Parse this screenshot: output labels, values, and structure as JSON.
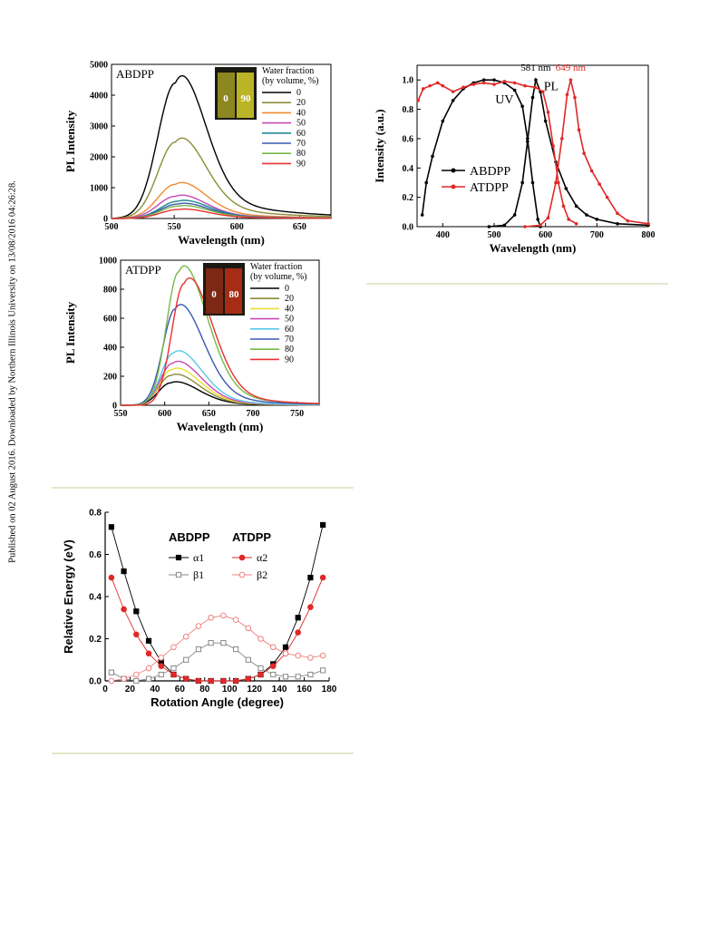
{
  "side_note": "Published on 02 August 2016. Downloaded by Northern Illinois University on 13/08/2016 04:26:28.",
  "chart_data": [
    {
      "id": "abdpp",
      "type": "line",
      "panel_label": "ABDPP",
      "xlabel": "Wavelength (nm)",
      "ylabel": "PL Intensity",
      "xlim": [
        500,
        675
      ],
      "ylim": [
        0,
        5000
      ],
      "xticks": [
        500,
        550,
        600,
        650
      ],
      "yticks": [
        0,
        1000,
        2000,
        3000,
        4000,
        5000
      ],
      "legend_title": [
        "Water fraction",
        "(by volume, %)"
      ],
      "inset_labels": [
        "0",
        "90"
      ],
      "inset_color": "#d8d02a",
      "series": [
        {
          "name": "0",
          "color": "#000000",
          "peak_x": 551,
          "peak_y": 4400
        },
        {
          "name": "20",
          "color": "#8c8c3a",
          "peak_x": 551,
          "peak_y": 2480
        },
        {
          "name": "40",
          "color": "#f08a30",
          "peak_x": 551,
          "peak_y": 1110
        },
        {
          "name": "50",
          "color": "#c848b8",
          "peak_x": 551,
          "peak_y": 720
        },
        {
          "name": "60",
          "color": "#208a90",
          "peak_x": 553,
          "peak_y": 560
        },
        {
          "name": "70",
          "color": "#3a58b0",
          "peak_x": 553,
          "peak_y": 470
        },
        {
          "name": "80",
          "color": "#78b848",
          "peak_x": 553,
          "peak_y": 400
        },
        {
          "name": "90",
          "color": "#e83030",
          "peak_x": 553,
          "peak_y": 290
        }
      ]
    },
    {
      "id": "atdpp",
      "type": "line",
      "panel_label": "ATDPP",
      "xlabel": "Wavelength (nm)",
      "ylabel": "PL Intensity",
      "xlim": [
        550,
        775
      ],
      "ylim": [
        0,
        1000
      ],
      "xticks": [
        550,
        600,
        650,
        700,
        750
      ],
      "yticks": [
        0,
        200,
        400,
        600,
        800,
        1000
      ],
      "legend_title": [
        "Water fraction",
        "(by volume, %)"
      ],
      "inset_labels": [
        "0",
        "80"
      ],
      "inset_color": "#c03018",
      "series": [
        {
          "name": "0",
          "color": "#000000",
          "peak_x": 607,
          "peak_y": 155
        },
        {
          "name": "20",
          "color": "#8c8c3a",
          "peak_x": 607,
          "peak_y": 205
        },
        {
          "name": "40",
          "color": "#e8e030",
          "peak_x": 608,
          "peak_y": 245
        },
        {
          "name": "50",
          "color": "#c848b8",
          "peak_x": 609,
          "peak_y": 290
        },
        {
          "name": "60",
          "color": "#58c8e8",
          "peak_x": 610,
          "peak_y": 360
        },
        {
          "name": "70",
          "color": "#3a58b0",
          "peak_x": 612,
          "peak_y": 665
        },
        {
          "name": "80",
          "color": "#78b848",
          "peak_x": 616,
          "peak_y": 920
        },
        {
          "name": "90",
          "color": "#e83030",
          "peak_x": 622,
          "peak_y": 840
        }
      ]
    },
    {
      "id": "uvpl",
      "type": "line",
      "xlabel": "Wavelength (nm)",
      "ylabel": "Intensity (a.u.)",
      "xlim": [
        350,
        800
      ],
      "ylim": [
        0,
        1.1
      ],
      "xticks": [
        400,
        500,
        600,
        700,
        800
      ],
      "yticks": [
        0.0,
        0.2,
        0.4,
        0.6,
        0.8,
        1.0
      ],
      "annotations": [
        "581 nm",
        "649 nm",
        "UV",
        "PL"
      ],
      "series": [
        {
          "name": "ABDPP",
          "color": "#000000",
          "uv": [
            [
              360,
              0.08
            ],
            [
              368,
              0.3
            ],
            [
              380,
              0.48
            ],
            [
              400,
              0.72
            ],
            [
              420,
              0.86
            ],
            [
              440,
              0.94
            ],
            [
              460,
              0.98
            ],
            [
              480,
              1.0
            ],
            [
              500,
              1.0
            ],
            [
              520,
              0.98
            ],
            [
              540,
              0.93
            ],
            [
              555,
              0.82
            ],
            [
              565,
              0.6
            ],
            [
              575,
              0.3
            ],
            [
              585,
              0.05
            ],
            [
              590,
              0.0
            ]
          ],
          "pl": [
            [
              490,
              0.0
            ],
            [
              520,
              0.01
            ],
            [
              540,
              0.08
            ],
            [
              555,
              0.3
            ],
            [
              565,
              0.58
            ],
            [
              575,
              0.88
            ],
            [
              581,
              1.0
            ],
            [
              590,
              0.92
            ],
            [
              600,
              0.72
            ],
            [
              620,
              0.44
            ],
            [
              640,
              0.26
            ],
            [
              660,
              0.14
            ],
            [
              680,
              0.08
            ],
            [
              700,
              0.05
            ],
            [
              740,
              0.02
            ],
            [
              800,
              0.01
            ]
          ]
        },
        {
          "name": "ATDPP",
          "color": "#e02828",
          "uv": [
            [
              352,
              0.86
            ],
            [
              362,
              0.94
            ],
            [
              375,
              0.96
            ],
            [
              390,
              0.98
            ],
            [
              400,
              0.96
            ],
            [
              420,
              0.92
            ],
            [
              440,
              0.95
            ],
            [
              460,
              0.97
            ],
            [
              480,
              0.98
            ],
            [
              500,
              0.97
            ],
            [
              520,
              0.99
            ],
            [
              540,
              0.98
            ],
            [
              560,
              0.96
            ],
            [
              580,
              0.95
            ],
            [
              595,
              0.92
            ],
            [
              605,
              0.78
            ],
            [
              615,
              0.55
            ],
            [
              625,
              0.3
            ],
            [
              635,
              0.14
            ],
            [
              645,
              0.05
            ],
            [
              660,
              0.02
            ]
          ],
          "pl": [
            [
              560,
              0.0
            ],
            [
              590,
              0.01
            ],
            [
              605,
              0.06
            ],
            [
              620,
              0.3
            ],
            [
              632,
              0.6
            ],
            [
              642,
              0.9
            ],
            [
              649,
              1.0
            ],
            [
              657,
              0.88
            ],
            [
              665,
              0.66
            ],
            [
              675,
              0.5
            ],
            [
              690,
              0.38
            ],
            [
              705,
              0.29
            ],
            [
              720,
              0.2
            ],
            [
              740,
              0.09
            ],
            [
              760,
              0.04
            ],
            [
              800,
              0.02
            ]
          ]
        }
      ]
    },
    {
      "id": "rotation",
      "type": "line",
      "xlabel": "Rotation Angle (degree)",
      "ylabel": "Relative Energy (eV)",
      "xlim": [
        0,
        180
      ],
      "ylim": [
        0,
        0.8
      ],
      "xticks": [
        0,
        20,
        40,
        60,
        80,
        100,
        120,
        140,
        160,
        180
      ],
      "yticks": [
        0.0,
        0.2,
        0.4,
        0.6,
        0.8
      ],
      "legend_groups": [
        "ABDPP",
        "ATDPP"
      ],
      "x": [
        5,
        15,
        25,
        35,
        45,
        55,
        65,
        75,
        85,
        95,
        105,
        115,
        125,
        135,
        145,
        155,
        165,
        175
      ],
      "series": [
        {
          "name": "α1",
          "group": "ABDPP",
          "color": "#000000",
          "marker": "filled-square",
          "values": [
            0.73,
            0.52,
            0.33,
            0.19,
            0.09,
            0.03,
            0.01,
            0.0,
            0.0,
            0.0,
            0.0,
            0.01,
            0.03,
            0.08,
            0.16,
            0.3,
            0.49,
            0.74
          ]
        },
        {
          "name": "β1",
          "group": "ABDPP",
          "color": "#888888",
          "marker": "open-square",
          "values": [
            0.04,
            0.01,
            0.0,
            0.01,
            0.03,
            0.06,
            0.1,
            0.15,
            0.18,
            0.18,
            0.15,
            0.1,
            0.06,
            0.03,
            0.02,
            0.02,
            0.03,
            0.05
          ]
        },
        {
          "name": "α2",
          "group": "ATDPP",
          "color": "#e02828",
          "marker": "filled-circle",
          "values": [
            0.49,
            0.34,
            0.22,
            0.13,
            0.07,
            0.03,
            0.01,
            0.0,
            0.0,
            0.0,
            0.0,
            0.01,
            0.03,
            0.07,
            0.13,
            0.23,
            0.35,
            0.49
          ]
        },
        {
          "name": "β2",
          "group": "ATDPP",
          "color": "#f08080",
          "marker": "open-circle",
          "values": [
            0.0,
            0.01,
            0.03,
            0.06,
            0.11,
            0.16,
            0.21,
            0.26,
            0.3,
            0.31,
            0.29,
            0.25,
            0.2,
            0.16,
            0.13,
            0.12,
            0.11,
            0.12
          ]
        }
      ]
    }
  ]
}
